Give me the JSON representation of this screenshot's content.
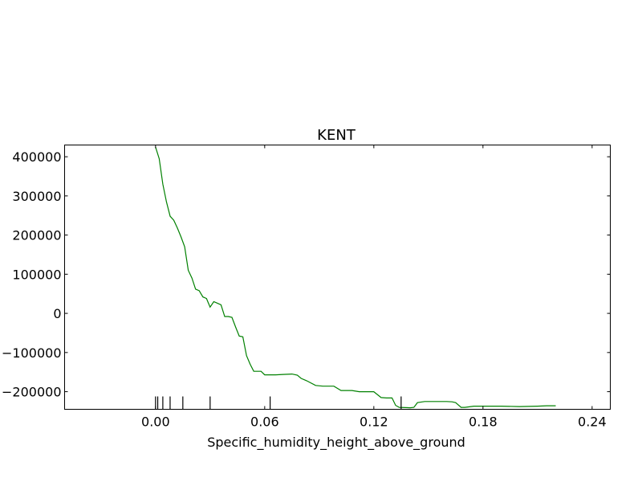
{
  "chart_data": {
    "type": "line",
    "title": "KENT",
    "xlabel": "Specific_humidity_height_above_ground",
    "ylabel": "",
    "xlim": [
      -0.05,
      0.25
    ],
    "ylim": [
      -245000,
      430000
    ],
    "grid": false,
    "x_ticks": [
      0.0,
      0.06,
      0.12,
      0.18,
      0.24
    ],
    "x_tick_labels": [
      "0.00",
      "0.06",
      "0.12",
      "0.18",
      "0.24"
    ],
    "y_ticks": [
      400000,
      300000,
      200000,
      100000,
      0,
      -100000,
      -200000
    ],
    "y_tick_labels": [
      "400000",
      "300000",
      "200000",
      "100000",
      "0",
      "−100000",
      "−200000"
    ],
    "series": [
      {
        "color": "#008000",
        "x": [
          0.0,
          0.002,
          0.004,
          0.006,
          0.008,
          0.01,
          0.012,
          0.014,
          0.016,
          0.018,
          0.02,
          0.022,
          0.024,
          0.026,
          0.028,
          0.03,
          0.032,
          0.034,
          0.036,
          0.038,
          0.04,
          0.042,
          0.044,
          0.046,
          0.048,
          0.05,
          0.052,
          0.054,
          0.056,
          0.058,
          0.06,
          0.064,
          0.066,
          0.07,
          0.075,
          0.078,
          0.08,
          0.083,
          0.088,
          0.092,
          0.098,
          0.102,
          0.108,
          0.112,
          0.118,
          0.12,
          0.124,
          0.127,
          0.13,
          0.132,
          0.134,
          0.14,
          0.142,
          0.144,
          0.148,
          0.155,
          0.16,
          0.163,
          0.165,
          0.168,
          0.17,
          0.175,
          0.18,
          0.19,
          0.2,
          0.21,
          0.215,
          0.22
        ],
        "values": [
          425000,
          395000,
          330000,
          285000,
          248000,
          238000,
          218000,
          195000,
          170000,
          110000,
          90000,
          62000,
          58000,
          42000,
          38000,
          16000,
          30000,
          26000,
          22000,
          -8000,
          -8000,
          -10000,
          -35000,
          -58000,
          -60000,
          -108000,
          -130000,
          -148000,
          -148000,
          -148000,
          -157000,
          -157000,
          -157000,
          -156000,
          -155000,
          -158000,
          -166000,
          -172000,
          -184000,
          -186000,
          -186000,
          -197000,
          -197000,
          -200000,
          -200000,
          -200000,
          -215000,
          -216000,
          -216000,
          -235000,
          -240000,
          -241000,
          -240000,
          -228000,
          -225000,
          -225000,
          -225000,
          -226000,
          -228000,
          -240000,
          -240000,
          -237000,
          -237000,
          -237000,
          -238000,
          -237000,
          -236000,
          -236000
        ]
      }
    ],
    "rug_x": [
      0.0,
      0.0012,
      0.004,
      0.008,
      0.015,
      0.03,
      0.063,
      0.135
    ]
  }
}
